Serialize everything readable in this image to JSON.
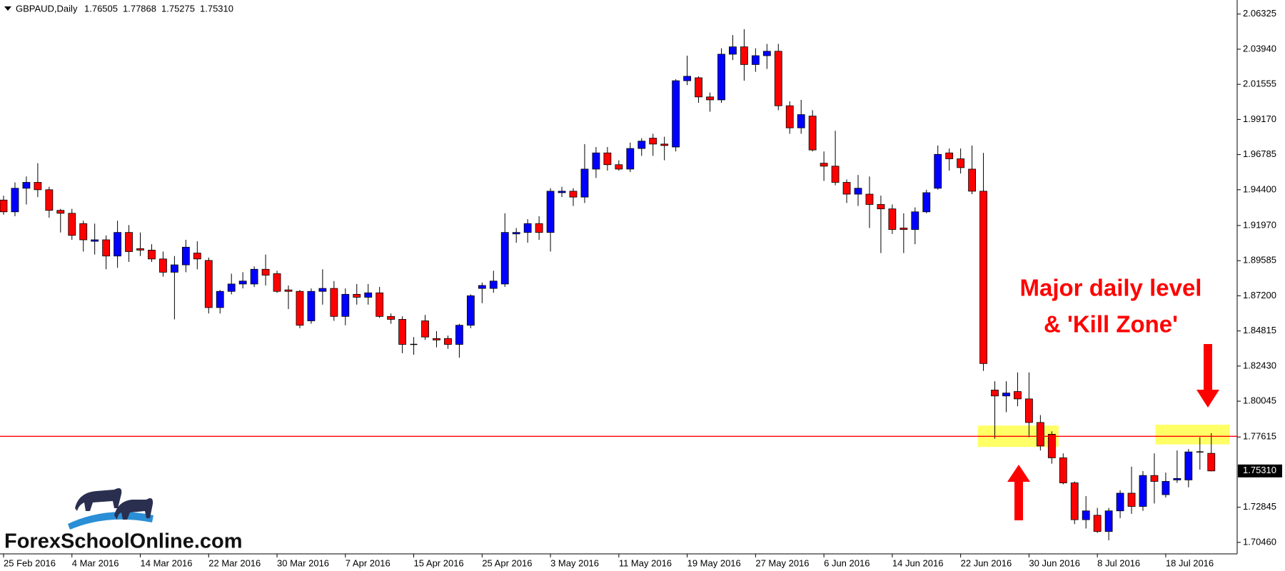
{
  "chart_data": {
    "type": "candlestick",
    "title": "GBPAUD,Daily",
    "ohlc_labels": [
      "1.76505",
      "1.77868",
      "1.75275",
      "1.75310"
    ],
    "categories": [
      "25 Feb 2016",
      null,
      null,
      null,
      null,
      null,
      "4 Mar 2016",
      null,
      null,
      null,
      null,
      null,
      "14 Mar 2016",
      null,
      null,
      null,
      null,
      null,
      "22 Mar 2016",
      null,
      null,
      null,
      null,
      null,
      "30 Mar 2016",
      null,
      null,
      null,
      null,
      null,
      "7 Apr 2016",
      null,
      null,
      null,
      null,
      null,
      "15 Apr 2016",
      null,
      null,
      null,
      null,
      null,
      "25 Apr 2016",
      null,
      null,
      null,
      null,
      null,
      "3 May 2016",
      null,
      null,
      null,
      null,
      null,
      "11 May 2016",
      null,
      null,
      null,
      null,
      null,
      "19 May 2016",
      null,
      null,
      null,
      null,
      null,
      "27 May 2016",
      null,
      null,
      null,
      null,
      null,
      "6 Jun 2016",
      null,
      null,
      null,
      null,
      null,
      "14 Jun 2016",
      null,
      null,
      null,
      null,
      null,
      "22 Jun 2016",
      null,
      null,
      null,
      null,
      null,
      "30 Jun 2016",
      null,
      null,
      null,
      null,
      null,
      "8 Jul 2016",
      null,
      null,
      null,
      null,
      null,
      "18 Jul 2016",
      null,
      null,
      null,
      null
    ],
    "open": [
      1.937,
      1.929,
      1.945,
      1.949,
      1.944,
      1.93,
      1.928,
      1.921,
      1.909,
      1.91,
      1.899,
      1.915,
      1.904,
      1.903,
      1.897,
      1.888,
      1.893,
      1.901,
      1.896,
      1.864,
      1.875,
      1.88,
      1.88,
      1.89,
      1.887,
      1.876,
      1.875,
      1.855,
      1.875,
      1.877,
      1.858,
      1.873,
      1.871,
      1.874,
      1.858,
      1.856,
      1.839,
      1.855,
      1.843,
      1.843,
      1.839,
      1.852,
      1.877,
      1.877,
      1.88,
      1.914,
      1.915,
      1.921,
      1.915,
      1.942,
      1.943,
      1.939,
      1.958,
      1.969,
      1.961,
      1.958,
      1.972,
      1.979,
      1.975,
      1.973,
      2.018,
      2.02,
      2.007,
      2.005,
      2.036,
      2.041,
      2.029,
      2.035,
      2.038,
      2.001,
      1.986,
      1.994,
      1.962,
      1.96,
      1.949,
      1.941,
      1.941,
      1.934,
      1.931,
      1.918,
      1.917,
      1.929,
      1.945,
      1.969,
      1.965,
      1.958,
      1.943,
      1.808,
      1.804,
      1.807,
      1.802,
      1.786,
      1.778,
      1.762,
      1.745,
      1.72,
      1.723,
      1.712,
      1.726,
      1.738,
      1.729,
      1.75,
      1.737,
      1.747,
      1.747,
      1.766,
      1.76505
    ],
    "high": [
      1.94,
      1.949,
      1.953,
      1.962,
      1.946,
      1.931,
      1.931,
      1.923,
      1.921,
      1.913,
      1.923,
      1.92,
      1.915,
      1.907,
      1.902,
      1.899,
      1.91,
      1.909,
      1.898,
      1.876,
      1.887,
      1.888,
      1.892,
      1.9,
      1.889,
      1.879,
      1.876,
      1.877,
      1.89,
      1.882,
      1.877,
      1.88,
      1.88,
      1.878,
      1.86,
      1.858,
      1.844,
      1.859,
      1.848,
      1.845,
      1.853,
      1.873,
      1.881,
      1.889,
      1.928,
      1.918,
      1.924,
      1.926,
      1.945,
      1.946,
      1.945,
      1.975,
      1.973,
      1.973,
      1.964,
      1.976,
      1.979,
      1.982,
      1.98,
      2.019,
      2.035,
      2.021,
      2.01,
      2.04,
      2.049,
      2.053,
      2.04,
      2.043,
      2.043,
      2.004,
      2.005,
      1.998,
      1.97,
      1.984,
      1.951,
      1.954,
      1.953,
      1.94,
      1.934,
      1.928,
      1.932,
      1.944,
      1.974,
      1.972,
      1.972,
      1.974,
      1.969,
      1.814,
      1.814,
      1.82,
      1.82,
      1.791,
      1.78,
      1.765,
      1.746,
      1.736,
      1.728,
      1.728,
      1.74,
      1.756,
      1.753,
      1.765,
      1.752,
      1.767,
      1.768,
      1.776,
      1.77868
    ],
    "low": [
      1.927,
      1.926,
      1.934,
      1.939,
      1.925,
      1.915,
      1.91,
      1.902,
      1.9,
      1.89,
      1.891,
      1.895,
      1.899,
      1.895,
      1.885,
      1.856,
      1.888,
      1.89,
      1.86,
      1.86,
      1.873,
      1.877,
      1.878,
      1.879,
      1.874,
      1.863,
      1.85,
      1.853,
      1.866,
      1.855,
      1.852,
      1.866,
      1.866,
      1.857,
      1.853,
      1.833,
      1.832,
      1.842,
      1.837,
      1.836,
      1.83,
      1.85,
      1.867,
      1.874,
      1.878,
      1.908,
      1.908,
      1.91,
      1.902,
      1.939,
      1.933,
      1.935,
      1.952,
      1.957,
      1.957,
      1.956,
      1.967,
      1.967,
      1.964,
      1.97,
      2.015,
      2.003,
      1.997,
      2.003,
      2.032,
      2.018,
      2.024,
      2.026,
      1.998,
      1.982,
      1.982,
      1.97,
      1.95,
      1.947,
      1.935,
      1.933,
      1.918,
      1.901,
      1.914,
      1.901,
      1.907,
      1.928,
      1.944,
      1.957,
      1.955,
      1.941,
      1.821,
      1.775,
      1.793,
      1.797,
      1.776,
      1.767,
      1.758,
      1.744,
      1.717,
      1.714,
      1.711,
      1.706,
      1.721,
      1.724,
      1.726,
      1.731,
      1.735,
      1.745,
      1.742,
      1.754,
      1.75275
    ],
    "close": [
      1.929,
      1.945,
      1.949,
      1.944,
      1.93,
      1.928,
      1.913,
      1.91,
      1.91,
      1.899,
      1.915,
      1.902,
      1.903,
      1.897,
      1.888,
      1.893,
      1.905,
      1.897,
      1.864,
      1.875,
      1.88,
      1.882,
      1.89,
      1.886,
      1.875,
      1.875,
      1.852,
      1.875,
      1.877,
      1.858,
      1.873,
      1.871,
      1.874,
      1.858,
      1.856,
      1.839,
      1.839,
      1.844,
      1.842,
      1.839,
      1.852,
      1.872,
      1.879,
      1.882,
      1.915,
      1.915,
      1.921,
      1.915,
      1.943,
      1.943,
      1.939,
      1.958,
      1.969,
      1.961,
      1.958,
      1.972,
      1.977,
      1.975,
      1.974,
      2.018,
      2.021,
      2.007,
      2.005,
      2.036,
      2.041,
      2.029,
      2.035,
      2.038,
      2.001,
      1.986,
      1.995,
      1.971,
      1.96,
      1.949,
      1.941,
      1.945,
      1.934,
      1.931,
      1.917,
      1.917,
      1.929,
      1.942,
      1.968,
      1.965,
      1.959,
      1.943,
      1.826,
      1.804,
      1.806,
      1.802,
      1.786,
      1.77,
      1.762,
      1.745,
      1.72,
      1.726,
      1.712,
      1.726,
      1.738,
      1.729,
      1.75,
      1.746,
      1.746,
      1.748,
      1.766,
      1.766,
      1.7531
    ],
    "up_color": "#0000ff",
    "down_color": "#ff0000",
    "ylim": [
      1.6968,
      2.0728
    ],
    "yticks": [
      2.06325,
      {
        "value": 2.0394,
        "label": "2.03940"
      },
      2.01555,
      {
        "value": 1.9917,
        "label": "1.99170"
      },
      1.96785,
      {
        "value": 1.944,
        "label": "1.94400"
      },
      {
        "value": 1.9197,
        "label": "1.91970"
      },
      1.89585,
      {
        "value": 1.872,
        "label": "1.87200"
      },
      1.84815,
      {
        "value": 1.8243,
        "label": "1.82430"
      },
      1.80045,
      1.77615,
      1.72845,
      {
        "value": 1.7046,
        "label": "1.70460"
      }
    ],
    "price_marker": {
      "value": 1.7531,
      "label": "1.75310"
    },
    "level": 1.7766,
    "level_color": "#ff0000",
    "zones": [
      {
        "low": 1.7694,
        "high": 1.7839
      },
      {
        "low": 1.7711,
        "high": 1.7845
      }
    ],
    "annotations": [
      "Major daily level",
      "& 'Kill Zone'"
    ],
    "logo_text": "ForexSchoolOnline.com"
  }
}
